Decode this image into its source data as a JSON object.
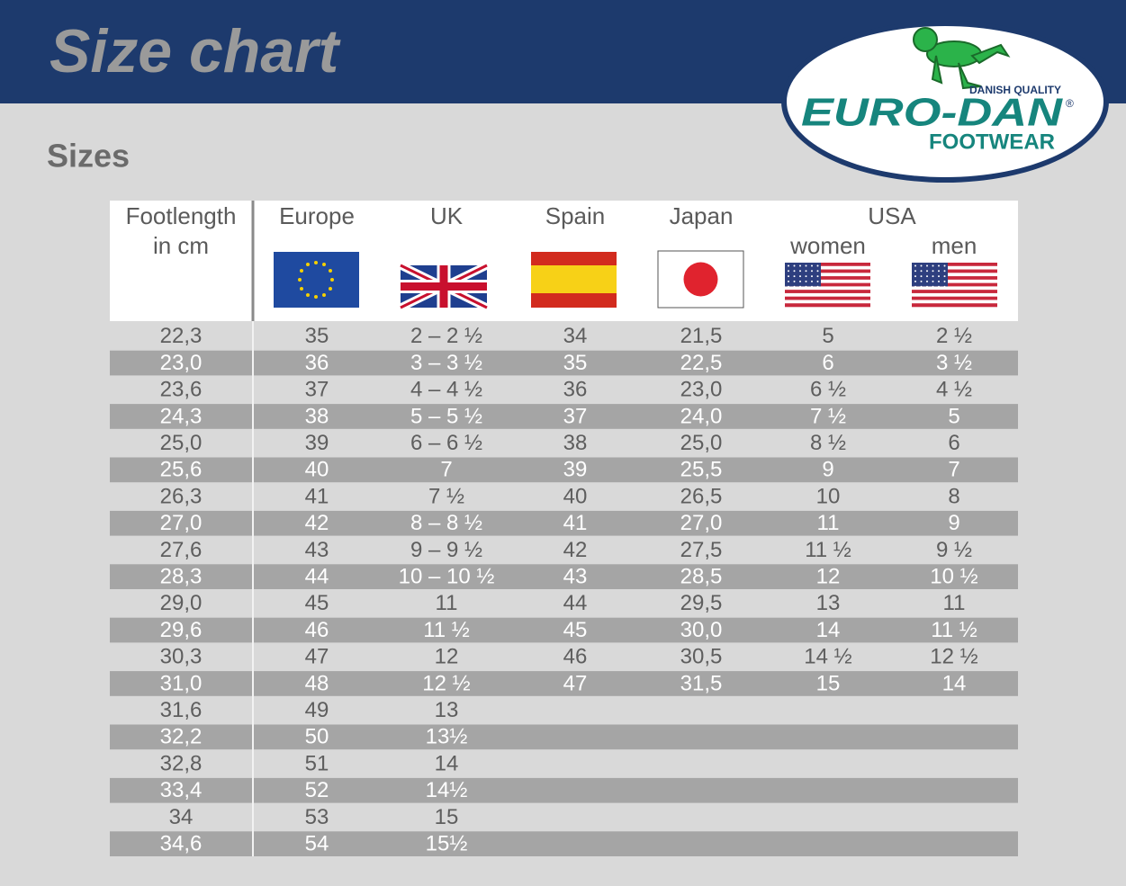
{
  "header": {
    "title": "Size chart"
  },
  "logo": {
    "tagline": "DANISH QUALITY",
    "brand": "EURO-DAN",
    "registered": "®",
    "subbrand": "FOOTWEAR"
  },
  "section": {
    "title": "Sizes"
  },
  "table": {
    "headers": {
      "footlength": [
        "Footlength",
        "in cm"
      ],
      "europe": "Europe",
      "uk": "UK",
      "spain": "Spain",
      "japan": "Japan",
      "usa": "USA",
      "usa_women": "women",
      "usa_men": "men"
    },
    "rows": [
      [
        "22,3",
        "35",
        "2 – 2 ½",
        "34",
        "21,5",
        "5",
        "2 ½"
      ],
      [
        "23,0",
        "36",
        "3 – 3 ½",
        "35",
        "22,5",
        "6",
        "3 ½"
      ],
      [
        "23,6",
        "37",
        "4 – 4 ½",
        "36",
        "23,0",
        "6 ½",
        "4 ½"
      ],
      [
        "24,3",
        "38",
        "5 – 5 ½",
        "37",
        "24,0",
        "7 ½",
        "5"
      ],
      [
        "25,0",
        "39",
        "6 – 6 ½",
        "38",
        "25,0",
        "8 ½",
        "6"
      ],
      [
        "25,6",
        "40",
        "7",
        "39",
        "25,5",
        "9",
        "7"
      ],
      [
        "26,3",
        "41",
        "7 ½",
        "40",
        "26,5",
        "10",
        "8"
      ],
      [
        "27,0",
        "42",
        "8 – 8 ½",
        "41",
        "27,0",
        "11",
        "9"
      ],
      [
        "27,6",
        "43",
        "9 – 9 ½",
        "42",
        "27,5",
        "11 ½",
        "9 ½"
      ],
      [
        "28,3",
        "44",
        "10 – 10 ½",
        "43",
        "28,5",
        "12",
        "10 ½"
      ],
      [
        "29,0",
        "45",
        "11",
        "44",
        "29,5",
        "13",
        "11"
      ],
      [
        "29,6",
        "46",
        "11 ½",
        "45",
        "30,0",
        "14",
        "11 ½"
      ],
      [
        "30,3",
        "47",
        "12",
        "46",
        "30,5",
        "14 ½",
        "12 ½"
      ],
      [
        "31,0",
        "48",
        "12 ½",
        "47",
        "31,5",
        "15",
        "14"
      ],
      [
        "31,6",
        "49",
        "13"
      ],
      [
        "32,2",
        "50",
        "13½"
      ],
      [
        "32,8",
        "51",
        "14"
      ],
      [
        "33,4",
        "52",
        "14½"
      ],
      [
        "34",
        "53",
        "15"
      ],
      [
        "34,6",
        "54",
        "15½"
      ]
    ]
  }
}
